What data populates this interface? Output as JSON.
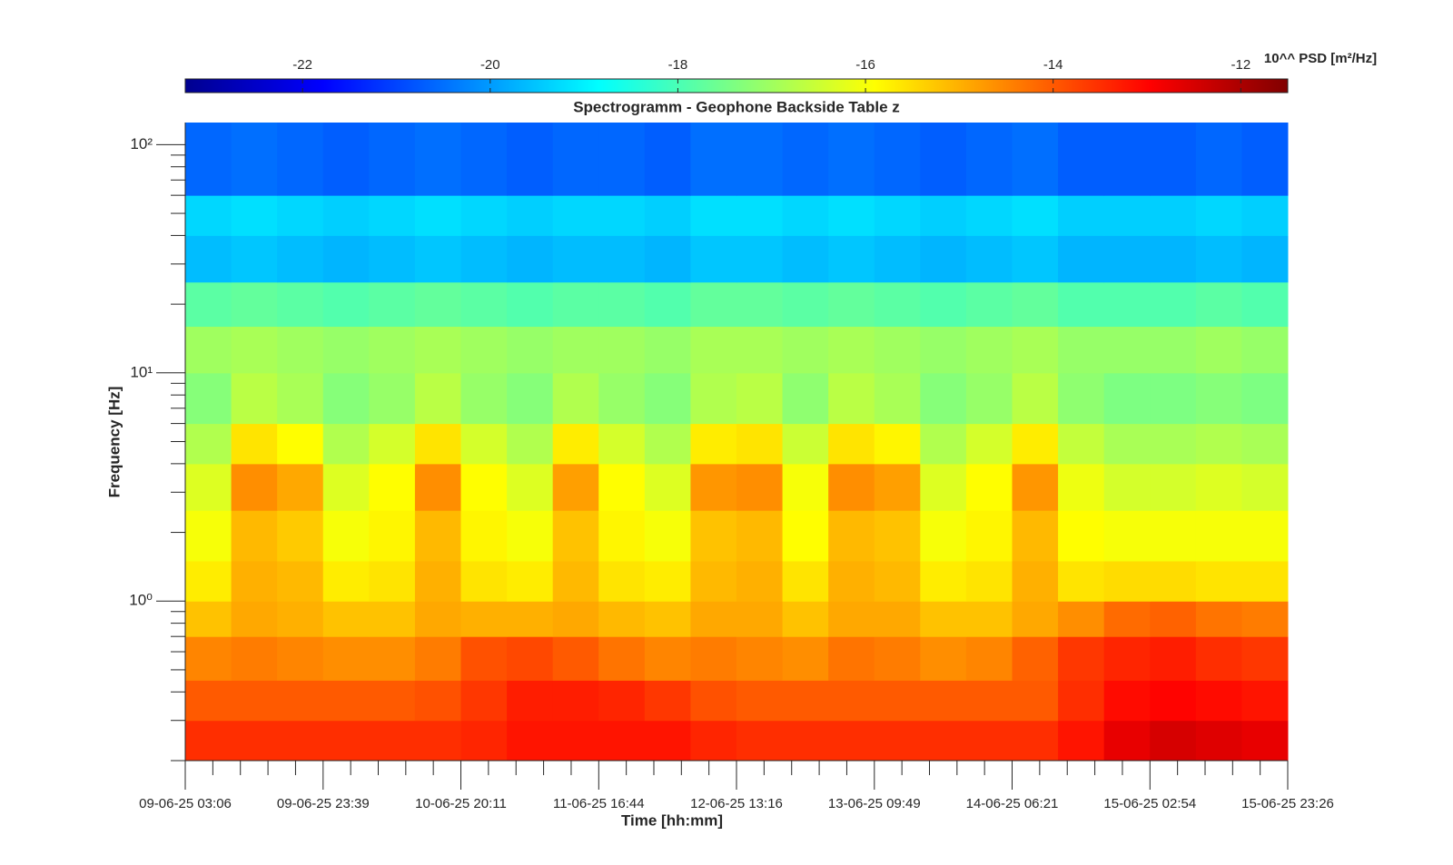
{
  "chart_data": {
    "type": "heatmap",
    "title": "Spectrogramm - Geophone Backside Table z",
    "xlabel": "Time [hh:mm]",
    "ylabel": "Frequency [Hz]",
    "colorbar_label": "10^^ PSD [m²/Hz]",
    "colormap": "jet",
    "xlim": [
      "09-06-25 03:06",
      "15-06-25 23:26"
    ],
    "xticks": [
      "09-06-25 03:06",
      "09-06-25 23:39",
      "10-06-25 20:11",
      "11-06-25 16:44",
      "12-06-25 13:16",
      "13-06-25 09:49",
      "14-06-25 06:21",
      "15-06-25 02:54",
      "15-06-25 23:26"
    ],
    "xminor_per_major": 5,
    "ylog": true,
    "ylim": [
      0.2,
      125
    ],
    "yticks": [
      {
        "value": 1,
        "label": "10⁰"
      },
      {
        "value": 10,
        "label": "10¹"
      },
      {
        "value": 100,
        "label": "10²"
      }
    ],
    "yminorticks": [
      0.2,
      0.3,
      0.4,
      0.5,
      0.6,
      0.7,
      0.8,
      0.9,
      2,
      3,
      4,
      5,
      6,
      7,
      8,
      9,
      20,
      30,
      40,
      50,
      60,
      70,
      80,
      90
    ],
    "clim": [
      -23.25,
      -11.5
    ],
    "cticks": [
      -22,
      -20,
      -18,
      -16,
      -14,
      -12
    ],
    "y_edges": [
      0.2,
      0.3,
      0.45,
      0.7,
      1.0,
      1.5,
      2.5,
      4,
      6,
      10,
      16,
      25,
      40,
      60,
      125
    ],
    "z": [
      [
        -13.5,
        -13.5,
        -13.5,
        -13.5,
        -13.5,
        -13.5,
        -13.4,
        -13.2,
        -13.2,
        -13.2,
        -13.2,
        -13.4,
        -13.5,
        -13.5,
        -13.5,
        -13.5,
        -13.5,
        -13.5,
        -13.5,
        -13.2,
        -12.7,
        -12.5,
        -12.6,
        -12.7
      ],
      [
        -14.0,
        -14.0,
        -14.0,
        -14.0,
        -14.0,
        -13.9,
        -13.6,
        -13.3,
        -13.3,
        -13.4,
        -13.6,
        -13.9,
        -14.0,
        -14.0,
        -14.0,
        -14.0,
        -14.0,
        -14.0,
        -14.0,
        -13.5,
        -13.1,
        -13.0,
        -13.1,
        -13.2
      ],
      [
        -14.5,
        -14.4,
        -14.5,
        -14.6,
        -14.6,
        -14.4,
        -13.9,
        -13.8,
        -14.0,
        -14.3,
        -14.5,
        -14.4,
        -14.5,
        -14.6,
        -14.3,
        -14.4,
        -14.6,
        -14.5,
        -14.1,
        -13.6,
        -13.4,
        -13.3,
        -13.5,
        -13.6
      ],
      [
        -15.2,
        -14.9,
        -15.0,
        -15.2,
        -15.2,
        -14.9,
        -15.0,
        -15.0,
        -14.9,
        -15.1,
        -15.2,
        -14.9,
        -14.9,
        -15.2,
        -14.9,
        -14.9,
        -15.2,
        -15.2,
        -14.9,
        -14.6,
        -14.2,
        -14.1,
        -14.3,
        -14.4
      ],
      [
        -15.7,
        -15.0,
        -15.1,
        -15.7,
        -15.6,
        -15.0,
        -15.6,
        -15.7,
        -15.1,
        -15.6,
        -15.7,
        -15.1,
        -15.0,
        -15.6,
        -15.0,
        -15.1,
        -15.7,
        -15.6,
        -15.0,
        -15.6,
        -15.5,
        -15.5,
        -15.6,
        -15.6
      ],
      [
        -16.0,
        -15.1,
        -15.3,
        -16.0,
        -15.8,
        -15.1,
        -15.8,
        -16.0,
        -15.2,
        -15.8,
        -16.0,
        -15.2,
        -15.1,
        -15.9,
        -15.1,
        -15.2,
        -16.0,
        -15.8,
        -15.1,
        -15.9,
        -16.0,
        -16.0,
        -16.0,
        -16.0
      ],
      [
        -16.3,
        -14.6,
        -14.9,
        -16.3,
        -15.9,
        -14.6,
        -15.9,
        -16.3,
        -14.8,
        -15.9,
        -16.3,
        -14.7,
        -14.6,
        -16.0,
        -14.6,
        -14.8,
        -16.3,
        -15.9,
        -14.7,
        -16.1,
        -16.4,
        -16.4,
        -16.3,
        -16.4
      ],
      [
        -16.8,
        -15.6,
        -15.9,
        -16.8,
        -16.4,
        -15.6,
        -16.4,
        -16.8,
        -15.7,
        -16.4,
        -16.8,
        -15.7,
        -15.6,
        -16.5,
        -15.6,
        -15.8,
        -16.8,
        -16.4,
        -15.7,
        -16.6,
        -16.9,
        -16.9,
        -16.8,
        -16.9
      ],
      [
        -17.3,
        -16.7,
        -16.9,
        -17.3,
        -17.1,
        -16.7,
        -17.1,
        -17.3,
        -16.8,
        -17.1,
        -17.3,
        -16.8,
        -16.7,
        -17.2,
        -16.7,
        -16.9,
        -17.3,
        -17.1,
        -16.7,
        -17.2,
        -17.4,
        -17.4,
        -17.3,
        -17.4
      ],
      [
        -17.0,
        -16.9,
        -17.0,
        -17.1,
        -17.0,
        -16.9,
        -17.0,
        -17.1,
        -17.0,
        -17.0,
        -17.1,
        -16.9,
        -16.9,
        -17.0,
        -16.9,
        -17.0,
        -17.1,
        -17.0,
        -16.9,
        -17.1,
        -17.1,
        -17.1,
        -17.0,
        -17.1
      ],
      [
        -17.8,
        -17.7,
        -17.8,
        -17.9,
        -17.8,
        -17.7,
        -17.8,
        -17.9,
        -17.8,
        -17.8,
        -17.9,
        -17.7,
        -17.7,
        -17.8,
        -17.7,
        -17.8,
        -17.9,
        -17.8,
        -17.7,
        -17.9,
        -17.9,
        -17.9,
        -17.8,
        -17.9
      ],
      [
        -19.6,
        -19.5,
        -19.6,
        -19.7,
        -19.6,
        -19.5,
        -19.6,
        -19.7,
        -19.6,
        -19.6,
        -19.7,
        -19.5,
        -19.5,
        -19.6,
        -19.5,
        -19.6,
        -19.7,
        -19.6,
        -19.5,
        -19.7,
        -19.7,
        -19.7,
        -19.6,
        -19.7
      ],
      [
        -19.3,
        -19.2,
        -19.3,
        -19.4,
        -19.3,
        -19.2,
        -19.3,
        -19.4,
        -19.3,
        -19.3,
        -19.4,
        -19.2,
        -19.2,
        -19.3,
        -19.2,
        -19.3,
        -19.4,
        -19.3,
        -19.2,
        -19.4,
        -19.4,
        -19.4,
        -19.3,
        -19.4
      ],
      [
        -20.6,
        -20.5,
        -20.6,
        -20.7,
        -20.6,
        -20.5,
        -20.6,
        -20.7,
        -20.6,
        -20.6,
        -20.7,
        -20.5,
        -20.5,
        -20.6,
        -20.5,
        -20.6,
        -20.7,
        -20.6,
        -20.5,
        -20.7,
        -20.7,
        -20.7,
        -20.6,
        -20.7
      ]
    ]
  }
}
